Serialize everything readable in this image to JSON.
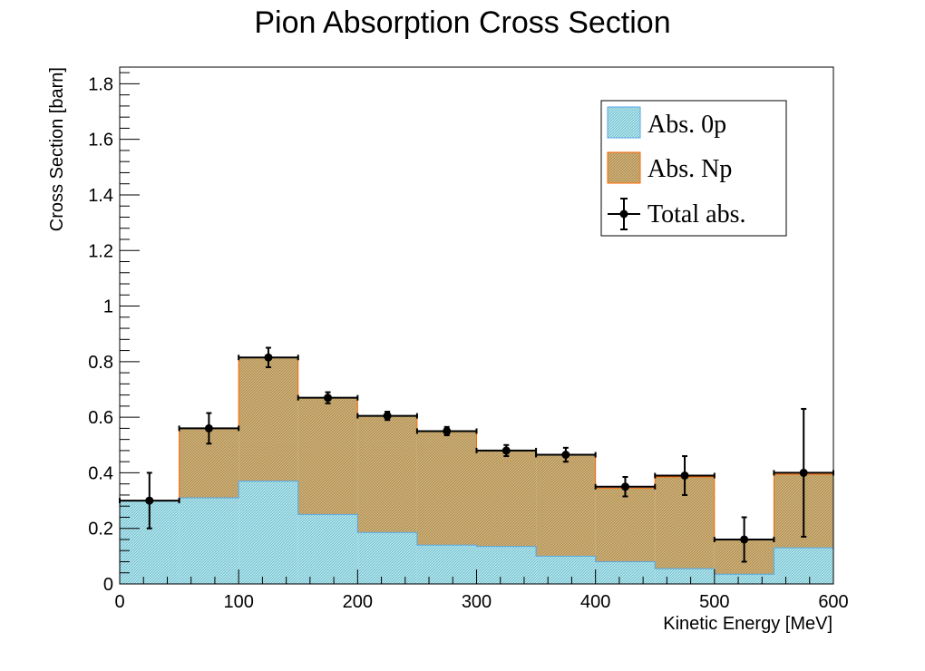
{
  "chart_data": {
    "type": "bar",
    "title": "Pion Absorption Cross Section",
    "xlabel": "Kinetic Energy [MeV]",
    "ylabel": "Cross Section [barn]",
    "xlim": [
      0,
      600
    ],
    "ylim": [
      0,
      1.86
    ],
    "x_ticks": [
      0,
      100,
      200,
      300,
      400,
      500,
      600
    ],
    "y_ticks": [
      0,
      0.2,
      0.4,
      0.6,
      0.8,
      1,
      1.2,
      1.4,
      1.6,
      1.8
    ],
    "bin_edges": [
      0,
      50,
      100,
      150,
      200,
      250,
      300,
      350,
      400,
      450,
      500,
      550,
      600
    ],
    "stacked": true,
    "grid": false,
    "legend_position": "top-right",
    "series": [
      {
        "name": "Abs. 0p",
        "style": "filled-histogram",
        "fill_color": "#a8dde6",
        "line_color": "#5aa6e0",
        "values": [
          0.3,
          0.31,
          0.37,
          0.25,
          0.185,
          0.14,
          0.135,
          0.1,
          0.08,
          0.055,
          0.035,
          0.13
        ]
      },
      {
        "name": "Abs. Np",
        "style": "filled-histogram",
        "fill_color": "#c8a35a",
        "line_color": "#ff6600",
        "values": [
          0.0,
          0.25,
          0.445,
          0.42,
          0.42,
          0.41,
          0.345,
          0.365,
          0.265,
          0.33,
          0.125,
          0.265
        ]
      },
      {
        "name": "Total abs.",
        "style": "points-with-errors",
        "color": "#000000",
        "x": [
          25,
          75,
          125,
          175,
          225,
          275,
          325,
          375,
          425,
          475,
          525,
          575
        ],
        "values": [
          0.3,
          0.56,
          0.815,
          0.67,
          0.605,
          0.55,
          0.48,
          0.465,
          0.35,
          0.39,
          0.16,
          0.4
        ],
        "errors": [
          0.1,
          0.055,
          0.035,
          0.02,
          0.015,
          0.015,
          0.02,
          0.025,
          0.035,
          0.07,
          0.08,
          0.23
        ]
      }
    ]
  }
}
